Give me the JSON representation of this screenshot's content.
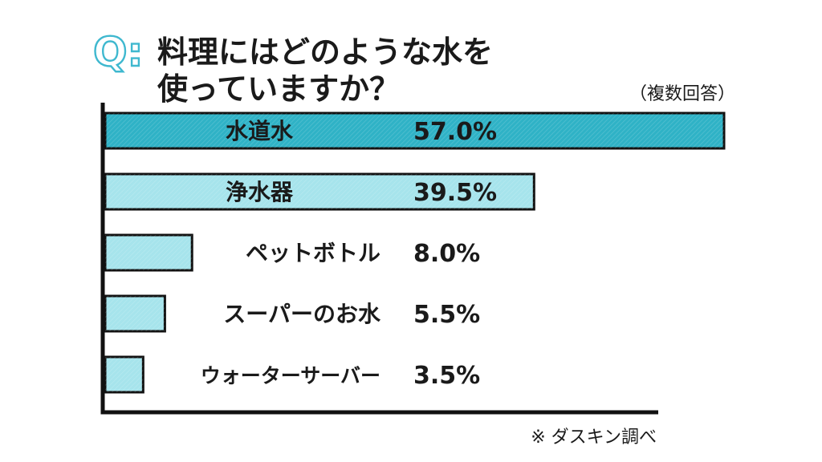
{
  "header": {
    "q_mark": "Q:",
    "title_line1": "料理にはどのような水を",
    "title_line2": "使っていますか？",
    "note": "（複数回答）"
  },
  "footer": {
    "source": "※ ダスキン調べ"
  },
  "colors": {
    "accent": "#3fb8cf",
    "top_bar": "#2fb2c6",
    "other_bars": "#a6e4ec",
    "outline": "#111111"
  },
  "chart_data": {
    "type": "bar",
    "orientation": "horizontal",
    "categories": [
      "水道水",
      "浄水器",
      "ペットボトル",
      "スーパーのお水",
      "ウォーターサーバー"
    ],
    "values": [
      57.0,
      39.5,
      8.0,
      5.5,
      3.5
    ],
    "value_labels": [
      "57.0%",
      "39.5%",
      "8.0%",
      "5.5%",
      "3.5%"
    ],
    "xlim": [
      0,
      57.0
    ],
    "grid": false,
    "legend": "none"
  }
}
